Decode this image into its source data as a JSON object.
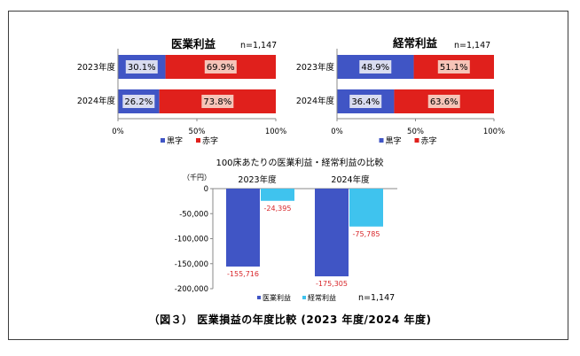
{
  "caption": "（図３） 医業損益の年度比較 (2023 年度/2024 年度)",
  "chart_data": [
    {
      "type": "bar",
      "stacked": "percent",
      "orientation": "horizontal",
      "title": "医業利益",
      "note": "n=1,147",
      "categories": [
        "2023年度",
        "2024年度"
      ],
      "series": [
        {
          "name": "黒字",
          "values": [
            30.1,
            26.2
          ],
          "labels": [
            "30.1%",
            "26.2%"
          ],
          "color": "#4055c5"
        },
        {
          "name": "赤字",
          "values": [
            69.9,
            73.8
          ],
          "labels": [
            "69.9%",
            "73.8%"
          ],
          "color": "#e0201c"
        }
      ],
      "xlim": [
        0,
        100
      ],
      "xticks": [
        "0%",
        "50%",
        "100%"
      ],
      "legend": "bottom"
    },
    {
      "type": "bar",
      "stacked": "percent",
      "orientation": "horizontal",
      "title": "経常利益",
      "note": "n=1,147",
      "categories": [
        "2023年度",
        "2024年度"
      ],
      "series": [
        {
          "name": "黒字",
          "values": [
            48.9,
            36.4
          ],
          "labels": [
            "48.9%",
            "36.4%"
          ],
          "color": "#4055c5"
        },
        {
          "name": "赤字",
          "values": [
            51.1,
            63.6
          ],
          "labels": [
            "51.1%",
            "63.6%"
          ],
          "color": "#e0201c"
        }
      ],
      "xlim": [
        0,
        100
      ],
      "xticks": [
        "0%",
        "50%",
        "100%"
      ],
      "legend": "bottom"
    },
    {
      "type": "bar",
      "title": "100床あたりの医業利益・経常利益の比較",
      "ylabel": "（千円）",
      "note": "n=1,147",
      "categories": [
        "2023年度",
        "2024年度"
      ],
      "series": [
        {
          "name": "医業利益",
          "values": [
            -155716,
            -175305
          ],
          "labels": [
            "-155,716",
            "-175,305"
          ],
          "color": "#4055c5"
        },
        {
          "name": "経常利益",
          "values": [
            -24395,
            -75785
          ],
          "labels": [
            "-24,395",
            "-75,785"
          ],
          "color": "#3fc3ee"
        }
      ],
      "ylim": [
        -200000,
        0
      ],
      "yticks": [
        "0",
        "-50,000",
        "-100,000",
        "-150,000",
        "-200,000"
      ],
      "legend": "bottom",
      "label_color": "#d8262a"
    }
  ]
}
